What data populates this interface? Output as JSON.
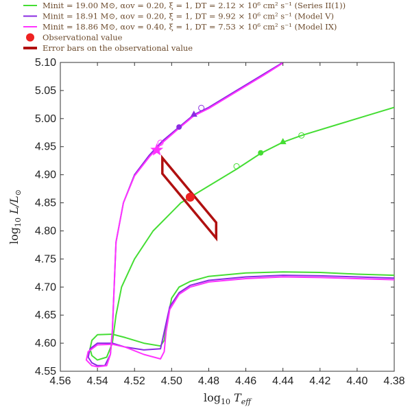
{
  "chart_data": {
    "type": "line",
    "xlabel": "log10 Teff",
    "ylabel": "log10 L/L⊙",
    "xlim": [
      4.56,
      4.38
    ],
    "ylim": [
      4.55,
      5.1
    ],
    "x_reversed": true,
    "grid": false,
    "legend_position": "top-left (outside plot)",
    "xticks": [
      "4.56",
      "4.54",
      "4.52",
      "4.50",
      "4.48",
      "4.46",
      "4.44",
      "4.42",
      "4.40",
      "4.38"
    ],
    "yticks": [
      "4.55",
      "4.60",
      "4.65",
      "4.70",
      "4.75",
      "4.80",
      "4.85",
      "4.90",
      "4.95",
      "5.00",
      "5.05",
      "5.10"
    ],
    "legend": [
      {
        "label": "Minit = 19.00 M⊙, αov = 0.20, ξ = 1, DT = 2.12 × 10⁶ cm² s⁻¹ (Series II(1))",
        "color": "#44dd33",
        "kind": "line"
      },
      {
        "label": "Minit = 18.91 M⊙, αov = 0.20, ξ = 1, DT = 9.92 × 10⁶ cm² s⁻¹ (Model V)",
        "color": "#8a2be2",
        "kind": "line"
      },
      {
        "label": "Minit = 18.86 M⊙, αov = 0.40, ξ = 1, DT = 7.53 × 10⁶ cm² s⁻¹ (Model IX)",
        "color": "#ff33ff",
        "kind": "line"
      },
      {
        "label": "Observational value",
        "color": "#ee2222",
        "kind": "dot"
      },
      {
        "label": "Error bars on the observational value",
        "color": "#b01010",
        "kind": "thickline"
      }
    ],
    "series": [
      {
        "name": "Series II(1)",
        "color": "#44dd33",
        "points": [
          [
            4.38,
            4.721
          ],
          [
            4.4,
            4.723
          ],
          [
            4.42,
            4.726
          ],
          [
            4.44,
            4.727
          ],
          [
            4.46,
            4.725
          ],
          [
            4.48,
            4.719
          ],
          [
            4.49,
            4.71
          ],
          [
            4.496,
            4.7
          ],
          [
            4.5,
            4.68
          ],
          [
            4.503,
            4.63
          ],
          [
            4.504,
            4.605
          ],
          [
            4.506,
            4.595
          ],
          [
            4.515,
            4.6
          ],
          [
            4.525,
            4.61
          ],
          [
            4.532,
            4.616
          ],
          [
            4.54,
            4.615
          ],
          [
            4.543,
            4.605
          ],
          [
            4.544,
            4.59
          ],
          [
            4.543,
            4.578
          ],
          [
            4.54,
            4.57
          ],
          [
            4.535,
            4.575
          ],
          [
            4.532,
            4.6
          ],
          [
            4.53,
            4.65
          ],
          [
            4.527,
            4.7
          ],
          [
            4.52,
            4.75
          ],
          [
            4.51,
            4.8
          ],
          [
            4.495,
            4.85
          ],
          [
            4.48,
            4.88
          ],
          [
            4.465,
            4.91
          ],
          [
            4.452,
            4.938
          ],
          [
            4.44,
            4.958
          ],
          [
            4.43,
            4.97
          ],
          [
            4.41,
            4.99
          ],
          [
            4.395,
            5.005
          ],
          [
            4.38,
            5.02
          ]
        ]
      },
      {
        "name": "Model V",
        "color": "#8a2be2",
        "points": [
          [
            4.38,
            4.716
          ],
          [
            4.4,
            4.718
          ],
          [
            4.42,
            4.72
          ],
          [
            4.44,
            4.721
          ],
          [
            4.46,
            4.718
          ],
          [
            4.48,
            4.712
          ],
          [
            4.49,
            4.703
          ],
          [
            4.496,
            4.69
          ],
          [
            4.501,
            4.665
          ],
          [
            4.504,
            4.62
          ],
          [
            4.506,
            4.59
          ],
          [
            4.515,
            4.588
          ],
          [
            4.525,
            4.593
          ],
          [
            4.532,
            4.6
          ],
          [
            4.54,
            4.6
          ],
          [
            4.544,
            4.59
          ],
          [
            4.545,
            4.575
          ],
          [
            4.543,
            4.565
          ],
          [
            4.54,
            4.56
          ],
          [
            4.536,
            4.56
          ],
          [
            4.533,
            4.58
          ],
          [
            4.532,
            4.62
          ],
          [
            4.531,
            4.7
          ],
          [
            4.53,
            4.78
          ],
          [
            4.526,
            4.85
          ],
          [
            4.52,
            4.9
          ],
          [
            4.512,
            4.935
          ],
          [
            4.505,
            4.96
          ],
          [
            4.496,
            4.985
          ],
          [
            4.488,
            5.007
          ],
          [
            4.48,
            5.02
          ],
          [
            4.465,
            5.05
          ],
          [
            4.45,
            5.08
          ],
          [
            4.44,
            5.1
          ]
        ]
      },
      {
        "name": "Model IX",
        "color": "#ff33ff",
        "points": [
          [
            4.38,
            4.713
          ],
          [
            4.4,
            4.715
          ],
          [
            4.42,
            4.717
          ],
          [
            4.44,
            4.718
          ],
          [
            4.46,
            4.715
          ],
          [
            4.48,
            4.709
          ],
          [
            4.49,
            4.7
          ],
          [
            4.496,
            4.687
          ],
          [
            4.501,
            4.66
          ],
          [
            4.503,
            4.62
          ],
          [
            4.504,
            4.585
          ],
          [
            4.506,
            4.572
          ],
          [
            4.515,
            4.58
          ],
          [
            4.525,
            4.593
          ],
          [
            4.532,
            4.598
          ],
          [
            4.54,
            4.597
          ],
          [
            4.545,
            4.585
          ],
          [
            4.546,
            4.57
          ],
          [
            4.543,
            4.56
          ],
          [
            4.54,
            4.558
          ],
          [
            4.535,
            4.56
          ],
          [
            4.533,
            4.58
          ],
          [
            4.532,
            4.62
          ],
          [
            4.531,
            4.7
          ],
          [
            4.53,
            4.78
          ],
          [
            4.526,
            4.85
          ],
          [
            4.52,
            4.898
          ],
          [
            4.512,
            4.932
          ],
          [
            4.505,
            4.957
          ],
          [
            4.496,
            4.983
          ],
          [
            4.488,
            5.005
          ],
          [
            4.48,
            5.018
          ],
          [
            4.465,
            5.048
          ],
          [
            4.45,
            5.078
          ],
          [
            4.44,
            5.099
          ]
        ]
      }
    ],
    "markers": [
      {
        "shape": "circle",
        "color": "#44dd33",
        "x": 4.452,
        "y": 4.939
      },
      {
        "shape": "triangle",
        "color": "#44dd33",
        "x": 4.44,
        "y": 4.958
      },
      {
        "shape": "open-circle",
        "color": "#44dd33",
        "x": 4.465,
        "y": 4.915
      },
      {
        "shape": "open-circle",
        "color": "#44dd33",
        "x": 4.43,
        "y": 4.97
      },
      {
        "shape": "circle",
        "color": "#8a2be2",
        "x": 4.496,
        "y": 4.985
      },
      {
        "shape": "triangle",
        "color": "#8a2be2",
        "x": 4.488,
        "y": 5.007
      },
      {
        "shape": "open-circle",
        "color": "#8a2be2",
        "x": 4.484,
        "y": 5.019
      },
      {
        "shape": "open-circle",
        "color": "#ff33ff",
        "x": 4.506,
        "y": 4.957
      },
      {
        "shape": "star",
        "color": "#ff33ff",
        "x": 4.508,
        "y": 4.944
      }
    ],
    "observation": {
      "x": 4.49,
      "y": 4.86,
      "color": "#ee2222"
    },
    "error_box": {
      "color": "#b01010",
      "corners": [
        [
          4.505,
          4.93
        ],
        [
          4.476,
          4.815
        ],
        [
          4.476,
          4.787
        ],
        [
          4.505,
          4.902
        ]
      ]
    }
  }
}
